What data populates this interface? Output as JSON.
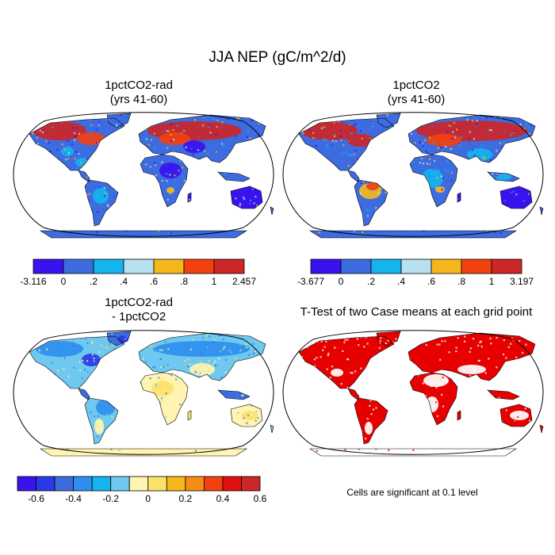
{
  "figure": {
    "title": "JJA NEP (gC/m^2/d)",
    "panels": [
      {
        "id": "tl",
        "title_line1": "1pctCO2-rad",
        "title_line2": "(yrs 41-60)",
        "variant": "rad"
      },
      {
        "id": "tr",
        "title_line1": "1pctCO2",
        "title_line2": "(yrs 41-60)",
        "variant": "full"
      },
      {
        "id": "bl",
        "title_line1": "1pctCO2-rad",
        "title_line2": "- 1pctCO2",
        "variant": "diff"
      },
      {
        "id": "br",
        "title_line1": "T-Test of two Case means at each grid point",
        "title_line2": "",
        "variant": "ttest"
      }
    ],
    "footnote": "Cells are significant at 0.1 level"
  },
  "colorbars": {
    "tl": {
      "colors": [
        "#3a12f0",
        "#3d6be0",
        "#14b4ef",
        "#b8e0f0",
        "#f5b81a",
        "#f2410f",
        "#cc2626"
      ],
      "labels": [
        "-3.116",
        "0",
        ".2",
        ".4",
        ".6",
        ".8",
        "1",
        "2.457"
      ]
    },
    "tr": {
      "colors": [
        "#3a12f0",
        "#3d6be0",
        "#14b4ef",
        "#b8e0f0",
        "#f5b81a",
        "#f2410f",
        "#cc2626"
      ],
      "labels": [
        "-3.677",
        "0",
        ".2",
        ".4",
        ".6",
        ".8",
        "1",
        "3.197"
      ]
    },
    "bl": {
      "colors": [
        "#3a12f0",
        "#2a38e8",
        "#3d6be0",
        "#2e8ff0",
        "#14b4ef",
        "#6ec8ef",
        "#fff4b0",
        "#fde26a",
        "#f5b81a",
        "#f58c14",
        "#f2410f",
        "#e01010",
        "#cc2626"
      ],
      "labels": [
        "-0.6",
        "-0.4",
        "-0.2",
        "0",
        "0.2",
        "0.4",
        "0.6"
      ]
    }
  },
  "colors": {
    "ocean": "#ffffff",
    "coast": "#000000",
    "significant": "#e60000"
  }
}
